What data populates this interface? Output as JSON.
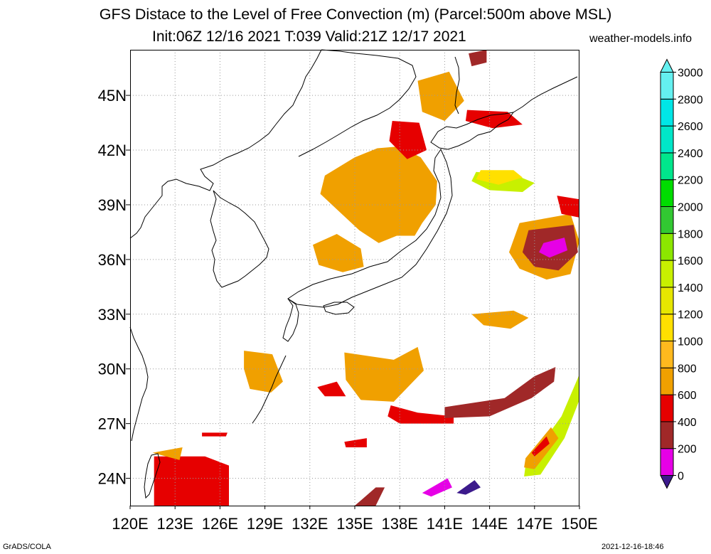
{
  "title": {
    "line1": "GFS Distace to the Level of Free Convection (m) (Parcel:500m above MSL)",
    "line2": "Init:06Z 12/16 2021 T:039 Valid:21Z 12/17 2021",
    "site": "weather-models.info"
  },
  "footer": {
    "left": "GrADS/COLA",
    "right": "2021-12-16-18:46"
  },
  "axes": {
    "lon_labels": [
      "120E",
      "123E",
      "126E",
      "129E",
      "132E",
      "135E",
      "138E",
      "141E",
      "144E",
      "147E",
      "150E"
    ],
    "lat_labels": [
      "24N",
      "27N",
      "30N",
      "33N",
      "36N",
      "39N",
      "42N",
      "45N"
    ],
    "lon_range": [
      120,
      150
    ],
    "lat_range": [
      22.5,
      47.5
    ]
  },
  "colorbar": {
    "levels": [
      "0",
      "200",
      "400",
      "600",
      "800",
      "1000",
      "1200",
      "1400",
      "1600",
      "1800",
      "2000",
      "2200",
      "2400",
      "2600",
      "2800",
      "3000"
    ],
    "colors": [
      "#3c1a8c",
      "#e600e6",
      "#a02828",
      "#e60000",
      "#f0a000",
      "#ffb91e",
      "#ffe000",
      "#e6e600",
      "#c8f000",
      "#8ce600",
      "#32c832",
      "#00dc00",
      "#00e68c",
      "#00e6c8",
      "#00e6e6",
      "#64f0f0"
    ]
  },
  "map": {
    "grid": "dotted",
    "legend_placement": "right",
    "fields": [
      {
        "name": "honshu-north",
        "color": "#f0a000",
        "pts": [
          [
            133,
            40.6
          ],
          [
            135,
            41.6
          ],
          [
            136.5,
            42.1
          ],
          [
            138,
            42.2
          ],
          [
            139.4,
            41.6
          ],
          [
            140.5,
            40.3
          ],
          [
            140.4,
            39
          ],
          [
            139.5,
            38
          ],
          [
            139,
            37.3
          ],
          [
            137.8,
            37.3
          ],
          [
            136.6,
            36.9
          ],
          [
            135.3,
            37.6
          ],
          [
            134,
            38.6
          ],
          [
            132.7,
            39.6
          ]
        ]
      },
      {
        "name": "korea-strait",
        "color": "#f0a000",
        "pts": [
          [
            132.2,
            36.8
          ],
          [
            133.8,
            37.4
          ],
          [
            135.4,
            36.6
          ],
          [
            135.6,
            35.6
          ],
          [
            134.2,
            35.3
          ],
          [
            132.6,
            35.7
          ]
        ]
      },
      {
        "name": "east-china-sea",
        "color": "#f0a000",
        "pts": [
          [
            127.6,
            31
          ],
          [
            129.5,
            30.8
          ],
          [
            130.2,
            29.3
          ],
          [
            129.4,
            28.7
          ],
          [
            128,
            28.9
          ],
          [
            127.6,
            30
          ]
        ]
      },
      {
        "name": "south-of-japan",
        "color": "#f0a000",
        "pts": [
          [
            134.3,
            30.9
          ],
          [
            137.6,
            30.5
          ],
          [
            139.2,
            31.2
          ],
          [
            139.6,
            29.9
          ],
          [
            137.6,
            28.2
          ],
          [
            135.4,
            28.3
          ],
          [
            134.4,
            29.4
          ]
        ]
      },
      {
        "name": "hokkaido-north",
        "color": "#f0a000",
        "pts": [
          [
            139.2,
            45.8
          ],
          [
            141.3,
            46.3
          ],
          [
            142.3,
            44.7
          ],
          [
            141,
            43.6
          ],
          [
            139.5,
            44.1
          ]
        ]
      },
      {
        "name": "east-36n",
        "color": "#f0a000",
        "pts": [
          [
            146,
            38
          ],
          [
            149.4,
            38.5
          ],
          [
            150,
            37
          ],
          [
            149.4,
            35.2
          ],
          [
            147.8,
            34.9
          ],
          [
            146,
            35.5
          ],
          [
            145.3,
            36.4
          ]
        ]
      },
      {
        "name": "east-34n",
        "color": "#f0a000",
        "pts": [
          [
            142.8,
            33
          ],
          [
            145.6,
            33.2
          ],
          [
            146.6,
            32.8
          ],
          [
            145.4,
            32.2
          ],
          [
            143.6,
            32.4
          ]
        ]
      },
      {
        "name": "honshu-red",
        "color": "#e60000",
        "pts": [
          [
            137.5,
            43.6
          ],
          [
            139.3,
            43.5
          ],
          [
            139.8,
            42
          ],
          [
            138.5,
            41.5
          ],
          [
            137.3,
            42.5
          ]
        ]
      },
      {
        "name": "taiwan-east",
        "color": "#e60000",
        "pts": [
          [
            121.6,
            25.2
          ],
          [
            125,
            25.2
          ],
          [
            126.6,
            24.7
          ],
          [
            126.6,
            22.5
          ],
          [
            121.6,
            22.5
          ]
        ]
      },
      {
        "name": "east-china-red",
        "color": "#e60000",
        "pts": [
          [
            137.4,
            28
          ],
          [
            139.2,
            27.6
          ],
          [
            141.6,
            27.4
          ],
          [
            141.6,
            27
          ],
          [
            138,
            27
          ],
          [
            137.2,
            27.4
          ]
        ]
      },
      {
        "name": "east-36n-brown",
        "color": "#a02828",
        "pts": [
          [
            146.6,
            37.6
          ],
          [
            149.6,
            37.9
          ],
          [
            149.9,
            36.4
          ],
          [
            148.6,
            35.4
          ],
          [
            147,
            35.6
          ],
          [
            146.2,
            36.4
          ]
        ]
      },
      {
        "name": "dateline-brown",
        "color": "#a02828",
        "pts": [
          [
            141,
            27.9
          ],
          [
            145,
            28.4
          ],
          [
            147,
            29.6
          ],
          [
            148.4,
            30.1
          ],
          [
            148.3,
            29.3
          ],
          [
            146.8,
            28.4
          ],
          [
            144,
            27.4
          ],
          [
            141,
            27.3
          ]
        ]
      },
      {
        "name": "east-36n-magenta",
        "color": "#e600e6",
        "pts": [
          [
            147.6,
            36.9
          ],
          [
            149,
            37.2
          ],
          [
            149.2,
            36.5
          ],
          [
            148,
            36.1
          ],
          [
            147.3,
            36.4
          ]
        ]
      },
      {
        "name": "sw-green",
        "color": "#c8f000",
        "pts": [
          [
            146.4,
            24.7
          ],
          [
            148.8,
            27.4
          ],
          [
            150,
            29.7
          ],
          [
            150,
            28.3
          ],
          [
            149,
            26.2
          ],
          [
            147.4,
            24.2
          ],
          [
            146.3,
            24.1
          ]
        ]
      },
      {
        "name": "sw-orange",
        "color": "#f0a000",
        "pts": [
          [
            146.4,
            25.1
          ],
          [
            148.1,
            26.8
          ],
          [
            148.6,
            26.2
          ],
          [
            147,
            24.5
          ],
          [
            146.3,
            24.6
          ]
        ]
      },
      {
        "name": "sw-red",
        "color": "#e60000",
        "pts": [
          [
            146.8,
            25.4
          ],
          [
            147.8,
            26.3
          ],
          [
            148,
            25.9
          ],
          [
            147,
            25.2
          ]
        ]
      },
      {
        "name": "north-green",
        "color": "#c8f000",
        "pts": [
          [
            143.1,
            40.8
          ],
          [
            145.8,
            40.6
          ],
          [
            147,
            40.2
          ],
          [
            146.2,
            39.7
          ],
          [
            144,
            39.8
          ],
          [
            142.8,
            40.3
          ]
        ]
      },
      {
        "name": "north-yellow",
        "color": "#ffe000",
        "pts": [
          [
            143.4,
            40.9
          ],
          [
            145.6,
            40.9
          ],
          [
            146.2,
            40.5
          ],
          [
            144.6,
            40.1
          ],
          [
            143.1,
            40.4
          ]
        ]
      },
      {
        "name": "south-edge-brown",
        "color": "#a02828",
        "pts": [
          [
            135,
            22.5
          ],
          [
            136.4,
            23.5
          ],
          [
            137,
            23.5
          ],
          [
            136.4,
            22.5
          ]
        ]
      },
      {
        "name": "south-edge-magenta",
        "color": "#e600e6",
        "pts": [
          [
            139.5,
            23.2
          ],
          [
            141.2,
            24
          ],
          [
            141.5,
            23.5
          ],
          [
            140.1,
            23
          ]
        ]
      },
      {
        "name": "south-edge-purple",
        "color": "#3c1a8c",
        "pts": [
          [
            141.8,
            23.2
          ],
          [
            143,
            23.9
          ],
          [
            143.4,
            23.5
          ],
          [
            142.4,
            23.1
          ]
        ]
      },
      {
        "name": "kamchatka-brown",
        "color": "#a02828",
        "pts": [
          [
            142.6,
            47.3
          ],
          [
            143.8,
            47.5
          ],
          [
            143.8,
            46.8
          ],
          [
            142.8,
            46.6
          ]
        ]
      },
      {
        "name": "kuril-red",
        "color": "#e60000",
        "pts": [
          [
            142.5,
            44.2
          ],
          [
            145.2,
            44.1
          ],
          [
            146.2,
            43.4
          ],
          [
            144.2,
            43.2
          ],
          [
            142.4,
            43.6
          ]
        ]
      },
      {
        "name": "east-38n-red",
        "color": "#e60000",
        "pts": [
          [
            148.5,
            39.5
          ],
          [
            150,
            39.3
          ],
          [
            150,
            38.3
          ],
          [
            148.8,
            38.5
          ]
        ]
      },
      {
        "name": "okinawa-small",
        "color": "#e60000",
        "pts": [
          [
            132.5,
            29
          ],
          [
            133.8,
            29.3
          ],
          [
            134.4,
            28.5
          ],
          [
            133,
            28.5
          ]
        ]
      },
      {
        "name": "taiwan-north-orange",
        "color": "#f0a000",
        "pts": [
          [
            121.5,
            25.4
          ],
          [
            123.5,
            25.7
          ],
          [
            123.3,
            25
          ]
        ]
      },
      {
        "name": "korea-isl-red",
        "color": "#e60000",
        "pts": [
          [
            124.8,
            26.5
          ],
          [
            126.5,
            26.5
          ],
          [
            126.4,
            26.3
          ],
          [
            124.8,
            26.3
          ]
        ]
      },
      {
        "name": "pacific-red",
        "color": "#e60000",
        "pts": [
          [
            134.3,
            26
          ],
          [
            135.8,
            26.2
          ],
          [
            135.8,
            25.7
          ],
          [
            134.4,
            25.7
          ]
        ]
      }
    ]
  }
}
